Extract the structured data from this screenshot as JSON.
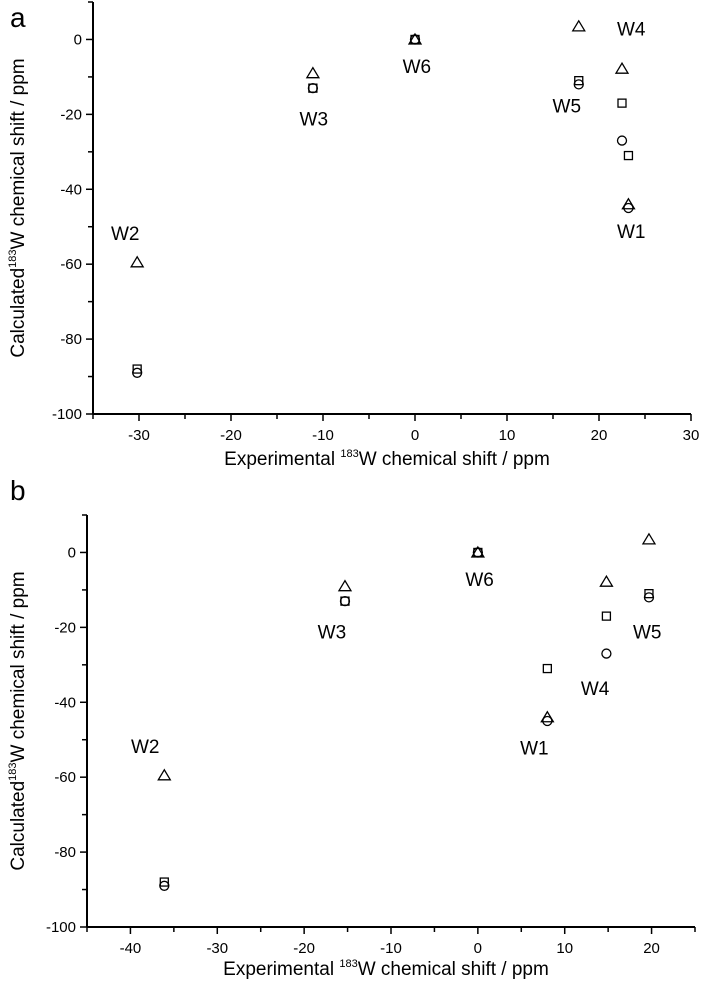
{
  "chart_data": [
    {
      "panel": "a",
      "type": "scatter",
      "title": "",
      "xlabel": {
        "prefix": "Experimental ",
        "sup": "183",
        "suffix": "W chemical shift / ppm"
      },
      "ylabel": {
        "prefix": "Calculated",
        "sup": "183",
        "suffix": "W chemical shift / ppm"
      },
      "xlim": [
        -35,
        30
      ],
      "ylim": [
        -100,
        10
      ],
      "xticks": [
        -30,
        -20,
        -10,
        0,
        10,
        20,
        30
      ],
      "xminor_step": 5,
      "yticks": [
        -100,
        -80,
        -60,
        -40,
        -20,
        0
      ],
      "yminor_step": 10,
      "grid": false,
      "legend": "none",
      "markers": [
        "triangle",
        "square",
        "circle"
      ],
      "points": [
        {
          "label": "W1",
          "x": 23.2,
          "triangle": -44,
          "square": -31,
          "circle": -45
        },
        {
          "label": "W2",
          "x": -30.2,
          "triangle": -59.5,
          "square": -88,
          "circle": -89
        },
        {
          "label": "W3",
          "x": -11.1,
          "triangle": -9,
          "square": -13,
          "circle": -13
        },
        {
          "label": "W4",
          "x": 22.5,
          "triangle": -7.8,
          "square": -17,
          "circle": -27
        },
        {
          "label": "W5",
          "x": 17.8,
          "triangle": 3.5,
          "square": -11,
          "circle": -12
        },
        {
          "label": "W6",
          "x": 0,
          "triangle": 0,
          "square": 0,
          "circle": 0
        }
      ],
      "annotations": [
        {
          "text": "W1",
          "x": 23.5,
          "y": -53
        },
        {
          "text": "W2",
          "x": -31.5,
          "y": -53.5
        },
        {
          "text": "W3",
          "x": -11.0,
          "y": -23
        },
        {
          "text": "W4",
          "x": 23.5,
          "y": 1
        },
        {
          "text": "W5",
          "x": 16.5,
          "y": -19.5
        },
        {
          "text": "W6",
          "x": 0.2,
          "y": -9
        }
      ]
    },
    {
      "panel": "b",
      "type": "scatter",
      "title": "",
      "xlabel": {
        "prefix": "Experimental ",
        "sup": "183",
        "suffix": "W chemical shift / ppm"
      },
      "ylabel": {
        "prefix": "Calculated",
        "sup": "183",
        "suffix": "W chemical shift / ppm"
      },
      "xlim": [
        -45,
        25
      ],
      "ylim": [
        -100,
        10
      ],
      "xticks": [
        -40,
        -30,
        -20,
        -10,
        0,
        10,
        20
      ],
      "xminor_step": 5,
      "yticks": [
        -100,
        -80,
        -60,
        -40,
        -20,
        0
      ],
      "yminor_step": 10,
      "grid": false,
      "legend": "none",
      "markers": [
        "triangle",
        "square",
        "circle"
      ],
      "points": [
        {
          "label": "W1",
          "x": 8.0,
          "triangle": -44,
          "square": -31,
          "circle": -45
        },
        {
          "label": "W2",
          "x": -36.1,
          "triangle": -59.5,
          "square": -88,
          "circle": -89
        },
        {
          "label": "W3",
          "x": -15.3,
          "triangle": -9,
          "square": -13,
          "circle": -13
        },
        {
          "label": "W4",
          "x": 14.8,
          "triangle": -7.8,
          "square": -17,
          "circle": -27
        },
        {
          "label": "W5",
          "x": 19.7,
          "triangle": 3.5,
          "square": -11,
          "circle": -12
        },
        {
          "label": "W6",
          "x": 0,
          "triangle": 0,
          "square": 0,
          "circle": 0
        }
      ],
      "annotations": [
        {
          "text": "W1",
          "x": 6.5,
          "y": -54
        },
        {
          "text": "W2",
          "x": -38.3,
          "y": -53.5
        },
        {
          "text": "W3",
          "x": -16.8,
          "y": -23
        },
        {
          "text": "W4",
          "x": 13.5,
          "y": -38
        },
        {
          "text": "W5",
          "x": 19.5,
          "y": -23
        },
        {
          "text": "W6",
          "x": 0.2,
          "y": -9
        }
      ]
    }
  ]
}
